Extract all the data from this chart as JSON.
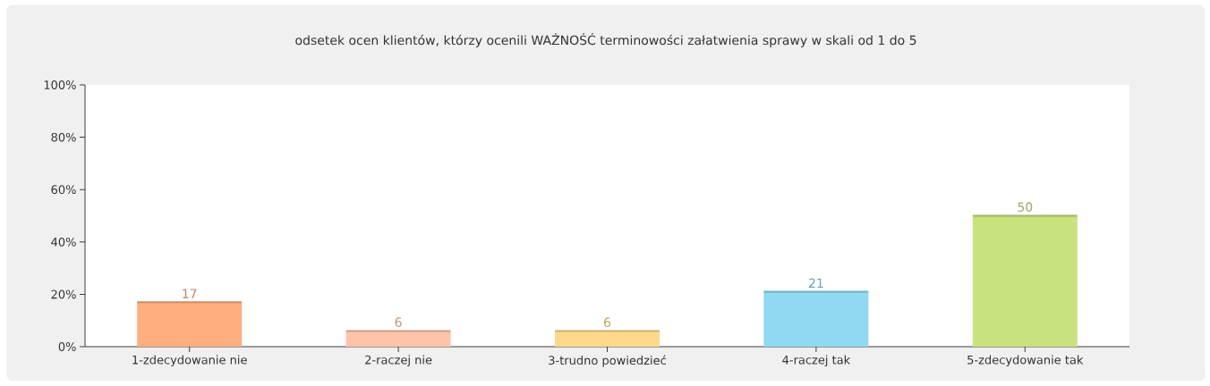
{
  "chart_data": {
    "type": "bar",
    "title": "odsetek ocen klientów, którzy ocenili WAŻNOŚĆ terminowości załatwienia sprawy w skali od 1 do 5",
    "categories": [
      "1-zdecydowanie nie",
      "2-raczej nie",
      "3-trudno powiedzieć",
      "4-raczej tak",
      "5-zdecydowanie tak"
    ],
    "values": [
      17,
      6,
      6,
      21,
      50
    ],
    "colors": [
      "#ffae80",
      "#ffc4aa",
      "#ffd98a",
      "#8fd9f2",
      "#c8e27d"
    ],
    "ylim": [
      0,
      100
    ],
    "yticks": [
      {
        "value": 0,
        "label": "0%"
      },
      {
        "value": 20,
        "label": "20%"
      },
      {
        "value": 40,
        "label": "40%"
      },
      {
        "value": 60,
        "label": "60%"
      },
      {
        "value": 80,
        "label": "80%"
      },
      {
        "value": 100,
        "label": "100%"
      }
    ],
    "data_labels": true
  }
}
